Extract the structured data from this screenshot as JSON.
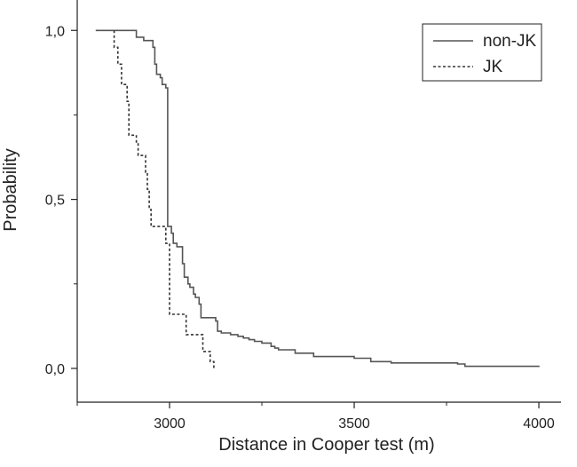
{
  "chart_data": {
    "type": "line",
    "title": "",
    "xlabel": "Distance in Cooper test (m)",
    "ylabel": "Probability",
    "xlim": [
      2750,
      4060
    ],
    "ylim": [
      -0.1,
      1.09
    ],
    "x_ticks": [
      {
        "value": 3000,
        "label": "3000"
      },
      {
        "value": 3500,
        "label": "3500"
      },
      {
        "value": 4000,
        "label": "4000"
      }
    ],
    "y_ticks": [
      {
        "value": 0.0,
        "label": "0,0"
      },
      {
        "value": 0.5,
        "label": "0,5"
      },
      {
        "value": 1.0,
        "label": "1,0"
      }
    ],
    "x_minor_ticks": [
      2750,
      3250,
      3750
    ],
    "y_minor_ticks": [
      0.25,
      0.75
    ],
    "grid": false,
    "legend_position": "top-right",
    "series": [
      {
        "name": "non-JK",
        "style": "solid",
        "color": "#555555",
        "points": [
          [
            2800,
            1.0
          ],
          [
            2910,
            1.0
          ],
          [
            2910,
            0.98
          ],
          [
            2930,
            0.98
          ],
          [
            2930,
            0.97
          ],
          [
            2955,
            0.97
          ],
          [
            2955,
            0.95
          ],
          [
            2960,
            0.95
          ],
          [
            2960,
            0.9
          ],
          [
            2965,
            0.9
          ],
          [
            2965,
            0.87
          ],
          [
            2975,
            0.87
          ],
          [
            2975,
            0.86
          ],
          [
            2980,
            0.86
          ],
          [
            2980,
            0.84
          ],
          [
            2990,
            0.84
          ],
          [
            2990,
            0.83
          ],
          [
            2995,
            0.83
          ],
          [
            2995,
            0.42
          ],
          [
            3005,
            0.42
          ],
          [
            3005,
            0.4
          ],
          [
            3010,
            0.4
          ],
          [
            3010,
            0.37
          ],
          [
            3020,
            0.37
          ],
          [
            3020,
            0.36
          ],
          [
            3035,
            0.36
          ],
          [
            3035,
            0.31
          ],
          [
            3040,
            0.31
          ],
          [
            3040,
            0.27
          ],
          [
            3050,
            0.27
          ],
          [
            3050,
            0.25
          ],
          [
            3055,
            0.25
          ],
          [
            3055,
            0.24
          ],
          [
            3065,
            0.24
          ],
          [
            3065,
            0.22
          ],
          [
            3070,
            0.22
          ],
          [
            3070,
            0.21
          ],
          [
            3080,
            0.21
          ],
          [
            3080,
            0.19
          ],
          [
            3085,
            0.19
          ],
          [
            3085,
            0.15
          ],
          [
            3125,
            0.15
          ],
          [
            3125,
            0.14
          ],
          [
            3130,
            0.14
          ],
          [
            3130,
            0.11
          ],
          [
            3140,
            0.11
          ],
          [
            3140,
            0.105
          ],
          [
            3165,
            0.105
          ],
          [
            3165,
            0.1
          ],
          [
            3185,
            0.1
          ],
          [
            3185,
            0.095
          ],
          [
            3200,
            0.095
          ],
          [
            3200,
            0.09
          ],
          [
            3215,
            0.09
          ],
          [
            3215,
            0.085
          ],
          [
            3230,
            0.085
          ],
          [
            3230,
            0.08
          ],
          [
            3250,
            0.08
          ],
          [
            3250,
            0.075
          ],
          [
            3275,
            0.075
          ],
          [
            3275,
            0.065
          ],
          [
            3285,
            0.065
          ],
          [
            3285,
            0.06
          ],
          [
            3295,
            0.06
          ],
          [
            3295,
            0.055
          ],
          [
            3340,
            0.055
          ],
          [
            3340,
            0.045
          ],
          [
            3390,
            0.045
          ],
          [
            3390,
            0.035
          ],
          [
            3500,
            0.035
          ],
          [
            3500,
            0.03
          ],
          [
            3545,
            0.03
          ],
          [
            3545,
            0.02
          ],
          [
            3600,
            0.02
          ],
          [
            3600,
            0.016
          ],
          [
            3780,
            0.016
          ],
          [
            3780,
            0.013
          ],
          [
            3800,
            0.013
          ],
          [
            3800,
            0.006
          ],
          [
            4000,
            0.006
          ],
          [
            4000,
            0.004
          ]
        ]
      },
      {
        "name": "JK",
        "style": "dashed",
        "color": "#333333",
        "points": [
          [
            2850,
            1.0
          ],
          [
            2850,
            0.95
          ],
          [
            2860,
            0.95
          ],
          [
            2860,
            0.9
          ],
          [
            2870,
            0.9
          ],
          [
            2870,
            0.84
          ],
          [
            2885,
            0.84
          ],
          [
            2885,
            0.79
          ],
          [
            2890,
            0.79
          ],
          [
            2890,
            0.69
          ],
          [
            2910,
            0.69
          ],
          [
            2910,
            0.67
          ],
          [
            2915,
            0.67
          ],
          [
            2915,
            0.63
          ],
          [
            2935,
            0.63
          ],
          [
            2935,
            0.58
          ],
          [
            2940,
            0.58
          ],
          [
            2940,
            0.53
          ],
          [
            2945,
            0.53
          ],
          [
            2945,
            0.47
          ],
          [
            2950,
            0.47
          ],
          [
            2950,
            0.42
          ],
          [
            2990,
            0.42
          ],
          [
            2990,
            0.37
          ],
          [
            3000,
            0.37
          ],
          [
            3000,
            0.16
          ],
          [
            3045,
            0.16
          ],
          [
            3045,
            0.1
          ],
          [
            3090,
            0.1
          ],
          [
            3090,
            0.05
          ],
          [
            3110,
            0.05
          ],
          [
            3110,
            0.02
          ],
          [
            3120,
            0.02
          ],
          [
            3120,
            0.0
          ]
        ]
      }
    ]
  }
}
